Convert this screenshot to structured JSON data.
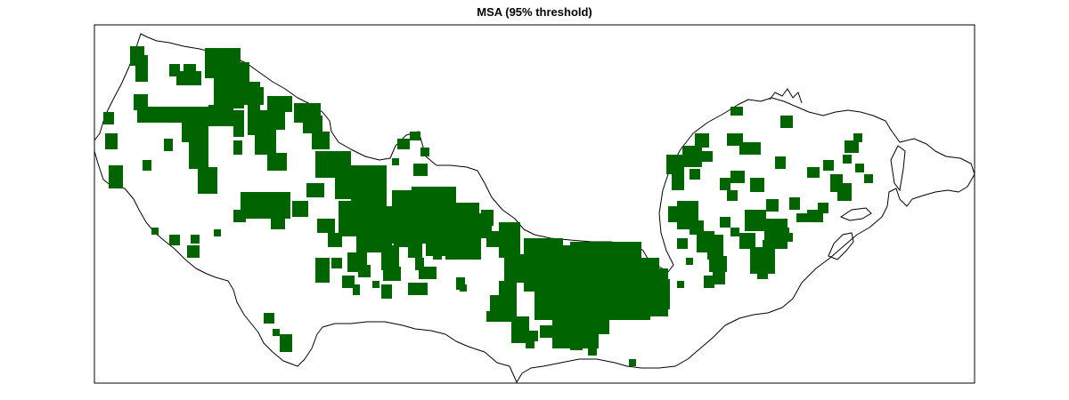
{
  "title": "MSA (95% threshold)",
  "colors": {
    "habitat": "#006400",
    "outline": "#000000",
    "background": "#ffffff",
    "frame": "#000000"
  }
}
